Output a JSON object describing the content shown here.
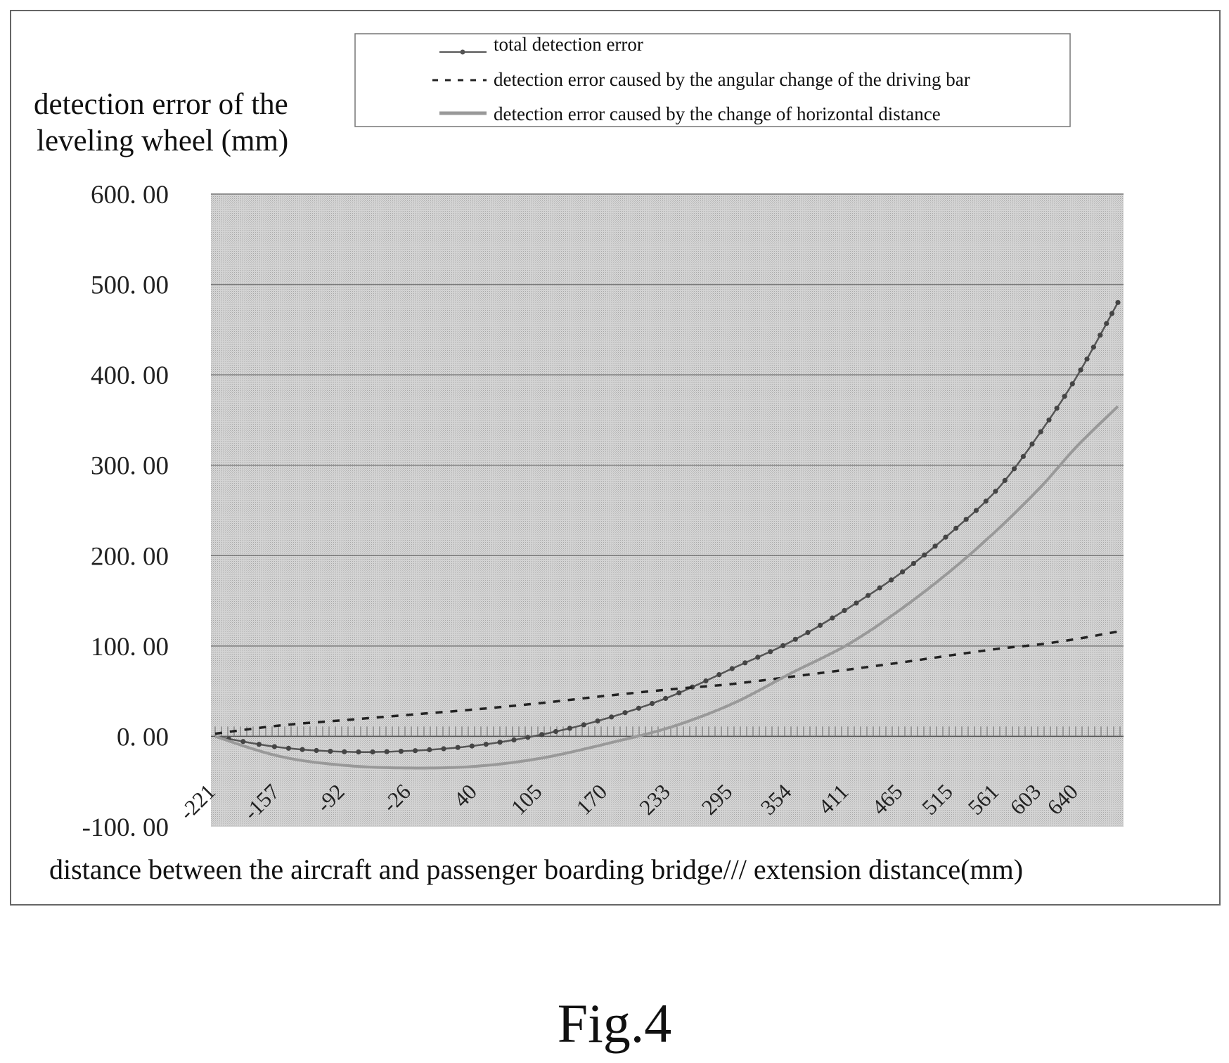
{
  "figure_label": "Fig.4",
  "chart_data": {
    "type": "line",
    "title": "",
    "ylabel_lines": [
      "detection error of the",
      "leveling wheel (mm)"
    ],
    "xlabel": "distance between the aircraft and passenger boarding bridge/// extension distance(mm)",
    "ylim": [
      -100,
      600
    ],
    "yticks": [
      600,
      500,
      400,
      300,
      200,
      100,
      0,
      -100
    ],
    "ytick_labels": [
      "600. 00",
      "500. 00",
      "400. 00",
      "300. 00",
      "200. 00",
      "100. 00",
      "0. 00",
      "-100. 00"
    ],
    "grid": true,
    "legend_position": "top",
    "x_tick_labels": [
      "-221",
      "-157",
      "-92",
      "-26",
      "40",
      "105",
      "170",
      "233",
      "295",
      "354",
      "411",
      "465",
      "515",
      "561",
      "603",
      "640"
    ],
    "x_range": [
      -221,
      680
    ],
    "series": [
      {
        "name": "total detection error",
        "style": "line-with-dots",
        "color": "#555555",
        "x": [
          -221,
          -157,
          -92,
          -26,
          40,
          105,
          170,
          233,
          295,
          354,
          411,
          465,
          515,
          561,
          603,
          640,
          680
        ],
        "y": [
          0,
          -12,
          -17,
          -16,
          -10,
          2,
          20,
          44,
          75,
          105,
          142,
          182,
          227,
          275,
          337,
          400,
          480
        ]
      },
      {
        "name": "detection error caused by the angular change of the driving bar",
        "style": "dashed",
        "color": "#222222",
        "x": [
          -221,
          -157,
          -92,
          -26,
          40,
          105,
          170,
          233,
          295,
          354,
          411,
          465,
          515,
          561,
          603,
          640,
          680
        ],
        "y": [
          3,
          12,
          18,
          24,
          30,
          37,
          45,
          52,
          58,
          66,
          74,
          82,
          90,
          97,
          102,
          108,
          116
        ]
      },
      {
        "name": "detection error caused by the change of horizontal distance",
        "style": "solid-gray",
        "color": "#999999",
        "x": [
          -221,
          -157,
          -92,
          -26,
          40,
          105,
          170,
          233,
          295,
          354,
          411,
          465,
          515,
          561,
          603,
          640,
          680
        ],
        "y": [
          0,
          -22,
          -32,
          -35,
          -33,
          -24,
          -8,
          10,
          36,
          70,
          102,
          142,
          185,
          230,
          276,
          322,
          365
        ]
      }
    ]
  }
}
